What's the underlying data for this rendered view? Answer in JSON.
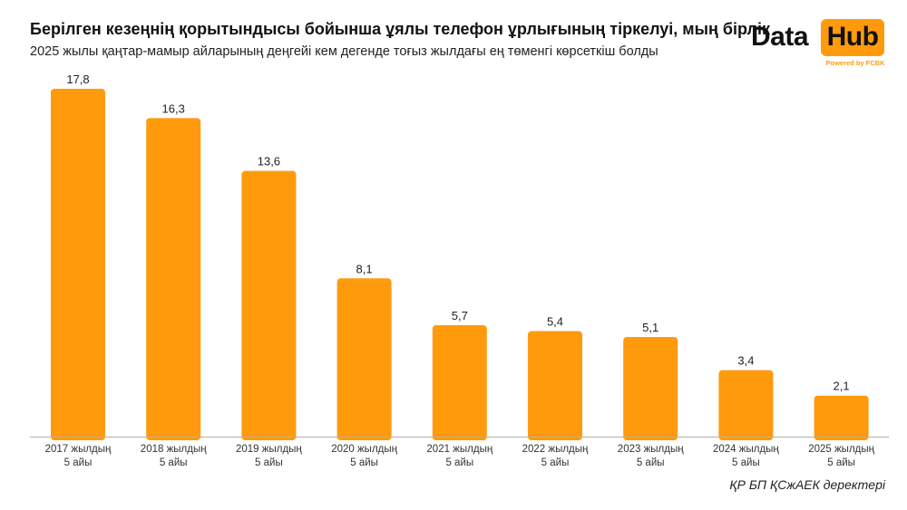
{
  "header": {
    "title": "Берілген кезеңнің қорытындысы бойынша ұялы телефон ұрлығының тіркелуі, мың бірлік",
    "subtitle": "2025 жылы қаңтар-мамыр айларының деңгейі кем дегенде тоғыз жылдағы ең төменгі көрсеткіш болды"
  },
  "logo": {
    "word1": "Data",
    "word2": "Hub",
    "powered": "Powered by FCBK"
  },
  "source": "ҚР БП ҚСжАЕК деректері",
  "colors": {
    "bar": "#ff9a0d",
    "axis": "#b0b0b0",
    "text": "#222222"
  },
  "chart_data": {
    "type": "bar",
    "categories": [
      [
        "2017 жылдың",
        "5 айы"
      ],
      [
        "2018 жылдың",
        "5 айы"
      ],
      [
        "2019 жылдың",
        "5 айы"
      ],
      [
        "2020 жылдың",
        "5 айы"
      ],
      [
        "2021 жылдың",
        "5 айы"
      ],
      [
        "2022 жылдың",
        "5 айы"
      ],
      [
        "2023 жылдың",
        "5 айы"
      ],
      [
        "2024 жылдың",
        "5 айы"
      ],
      [
        "2025 жылдың",
        "5 айы"
      ]
    ],
    "values": [
      17.8,
      16.3,
      13.6,
      8.1,
      5.7,
      5.4,
      5.1,
      3.4,
      2.1
    ],
    "data_labels": [
      "17,8",
      "16,3",
      "13,6",
      "8,1",
      "5,7",
      "5,4",
      "5,1",
      "3,4",
      "2,1"
    ],
    "ylim": [
      0,
      17.8
    ],
    "grid": false,
    "legend": "none"
  }
}
